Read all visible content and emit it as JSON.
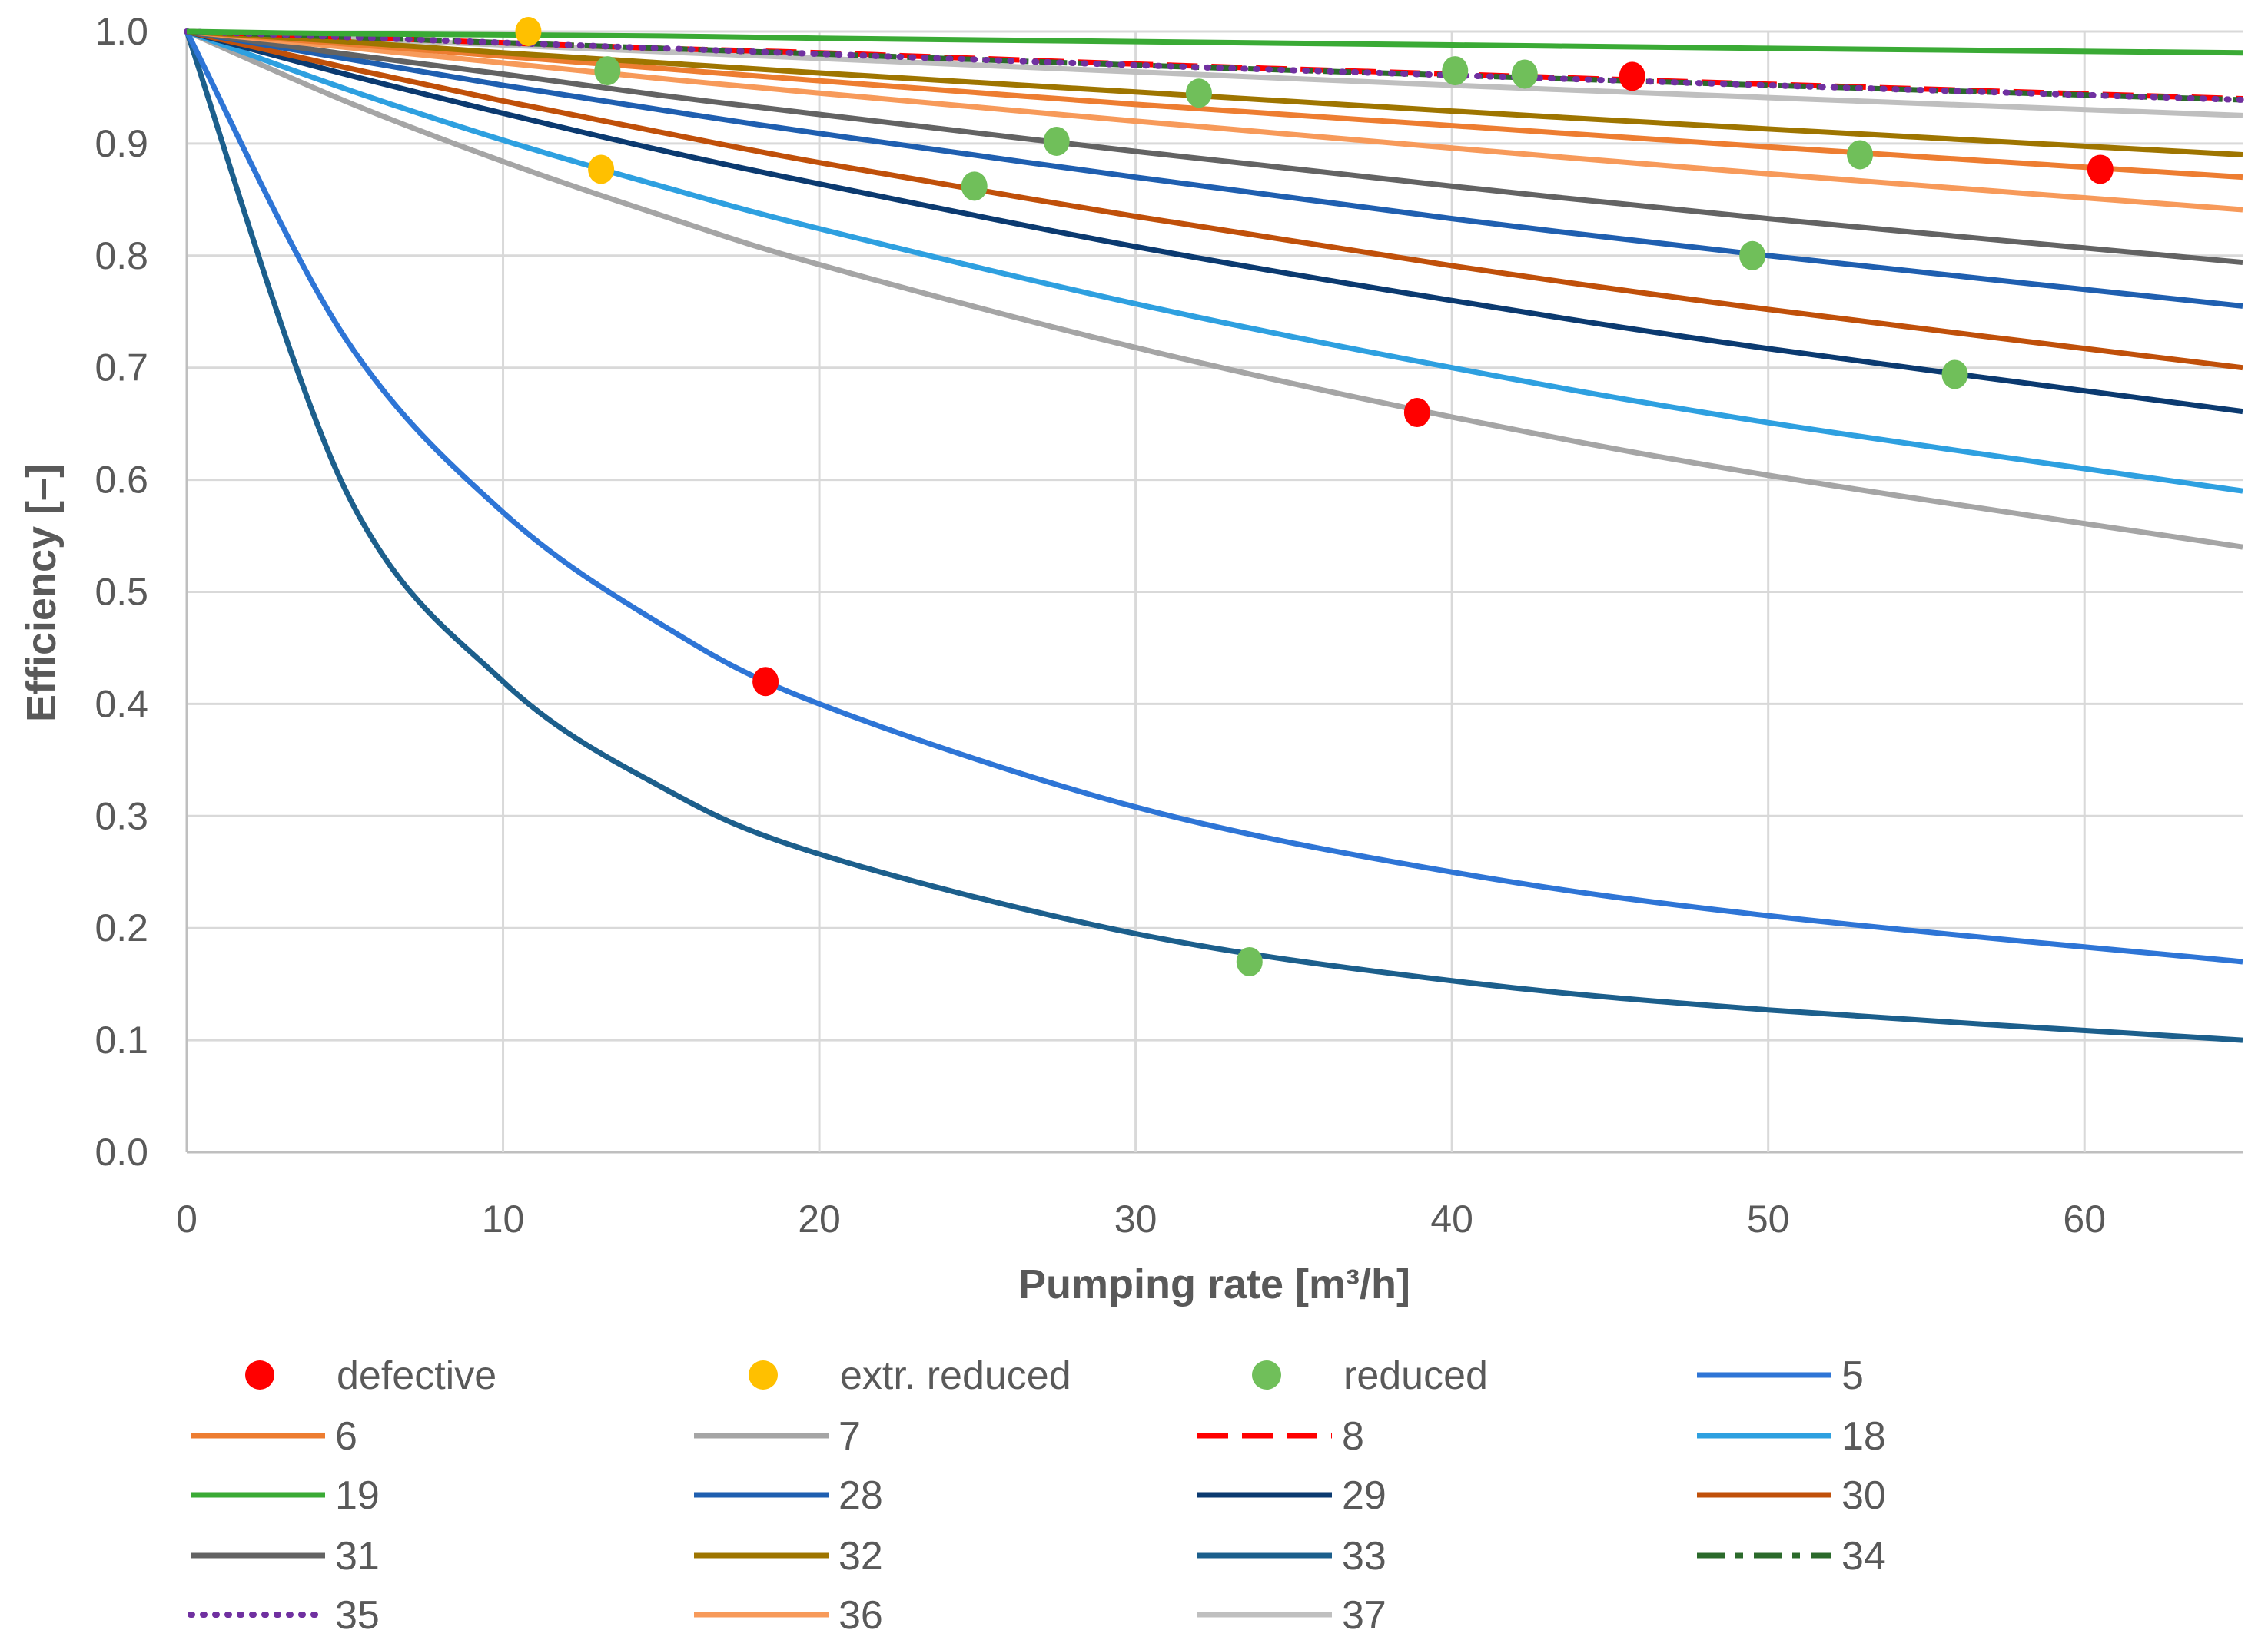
{
  "chart_data": {
    "type": "line",
    "title": "",
    "xlabel": "Pumping rate [m³/h]",
    "ylabel": "Efficiency [–]",
    "xlim": [
      0,
      65
    ],
    "ylim": [
      0,
      1
    ],
    "xticks": [
      "0",
      "10",
      "20",
      "30",
      "40",
      "50",
      "60"
    ],
    "yticks": [
      "0.0",
      "0.1",
      "0.2",
      "0.3",
      "0.4",
      "0.5",
      "0.6",
      "0.7",
      "0.8",
      "0.9",
      "1.0"
    ],
    "grid": true,
    "legend_placement": "bottom",
    "x": [
      0,
      5,
      10,
      15,
      20,
      30,
      40,
      50,
      65
    ],
    "series": [
      {
        "name": "5",
        "color": "#2e75d6",
        "style": "solid",
        "values": [
          1,
          0.727,
          0.571,
          0.471,
          0.4,
          0.308,
          0.25,
          0.211,
          0.17
        ]
      },
      {
        "name": "6",
        "color": "#ed7d31",
        "style": "solid",
        "values": [
          1,
          0.989,
          0.978,
          0.967,
          0.956,
          0.935,
          0.916,
          0.897,
          0.87
        ]
      },
      {
        "name": "7",
        "color": "#a5a5a5",
        "style": "solid",
        "values": [
          1,
          0.938,
          0.884,
          0.836,
          0.792,
          0.718,
          0.656,
          0.604,
          0.54
        ]
      },
      {
        "name": "8",
        "color": "#ff0000",
        "style": "dashed",
        "values": [
          1,
          0.995,
          0.99,
          0.985,
          0.981,
          0.971,
          0.962,
          0.953,
          0.94
        ]
      },
      {
        "name": "18",
        "color": "#2ea0e0",
        "style": "solid",
        "values": [
          1,
          0.949,
          0.903,
          0.862,
          0.824,
          0.757,
          0.7,
          0.651,
          0.59
        ]
      },
      {
        "name": "19",
        "color": "#3aaa35",
        "style": "solid",
        "values": [
          1,
          0.998,
          0.997,
          0.996,
          0.994,
          0.991,
          0.988,
          0.985,
          0.981
        ]
      },
      {
        "name": "28",
        "color": "#1f5fb0",
        "style": "solid",
        "values": [
          1,
          0.976,
          0.952,
          0.93,
          0.909,
          0.87,
          0.833,
          0.8,
          0.755
        ]
      },
      {
        "name": "29",
        "color": "#0b3a70",
        "style": "solid",
        "values": [
          1,
          0.962,
          0.927,
          0.894,
          0.864,
          0.808,
          0.76,
          0.717,
          0.661
        ]
      },
      {
        "name": "30",
        "color": "#c0500a",
        "style": "solid",
        "values": [
          1,
          0.968,
          0.938,
          0.91,
          0.883,
          0.835,
          0.791,
          0.752,
          0.7
        ]
      },
      {
        "name": "31",
        "color": "#636363",
        "style": "solid",
        "values": [
          1,
          0.98,
          0.962,
          0.943,
          0.926,
          0.893,
          0.862,
          0.833,
          0.794
        ]
      },
      {
        "name": "32",
        "color": "#9e7500",
        "style": "solid",
        "values": [
          1,
          0.991,
          0.981,
          0.972,
          0.963,
          0.946,
          0.929,
          0.913,
          0.89
        ]
      },
      {
        "name": "33",
        "color": "#1c5f8c",
        "style": "solid",
        "values": [
          1,
          0.592,
          0.42,
          0.326,
          0.266,
          0.195,
          0.153,
          0.127,
          0.1
        ]
      },
      {
        "name": "34",
        "color": "#2b6a2b",
        "style": "dashdot",
        "values": [
          1,
          0.995,
          0.99,
          0.985,
          0.98,
          0.97,
          0.961,
          0.952,
          0.939
        ]
      },
      {
        "name": "35",
        "color": "#7030a0",
        "style": "dotted",
        "values": [
          1,
          0.995,
          0.99,
          0.985,
          0.98,
          0.97,
          0.961,
          0.952,
          0.939
        ]
      },
      {
        "name": "36",
        "color": "#f79a5a",
        "style": "solid",
        "values": [
          1,
          0.986,
          0.972,
          0.958,
          0.945,
          0.92,
          0.896,
          0.873,
          0.841
        ]
      },
      {
        "name": "37",
        "color": "#bfbfbf",
        "style": "solid",
        "values": [
          1,
          0.994,
          0.988,
          0.982,
          0.976,
          0.964,
          0.952,
          0.941,
          0.925
        ]
      }
    ],
    "scatter": [
      {
        "name": "defective",
        "color": "#ff0000",
        "points": [
          [
            18.3,
            0.42
          ],
          [
            38.9,
            0.66
          ],
          [
            45.7,
            0.96
          ],
          [
            60.5,
            0.877
          ]
        ]
      },
      {
        "name": "extr. reduced",
        "color": "#ffc000",
        "points": [
          [
            10.8,
            1.0
          ],
          [
            13.1,
            0.877
          ]
        ]
      },
      {
        "name": "reduced",
        "color": "#70bf5a",
        "points": [
          [
            13.3,
            0.965
          ],
          [
            24.9,
            0.862
          ],
          [
            27.5,
            0.902
          ],
          [
            32.0,
            0.945
          ],
          [
            33.6,
            0.17
          ],
          [
            40.1,
            0.965
          ],
          [
            42.3,
            0.962
          ],
          [
            49.5,
            0.8
          ],
          [
            52.9,
            0.89
          ],
          [
            55.9,
            0.694
          ]
        ]
      }
    ],
    "legend_order": [
      "defective",
      "extr. reduced",
      "reduced",
      "5",
      "6",
      "7",
      "8",
      "18",
      "19",
      "28",
      "29",
      "30",
      "31",
      "32",
      "33",
      "34",
      "35",
      "36",
      "37"
    ]
  }
}
